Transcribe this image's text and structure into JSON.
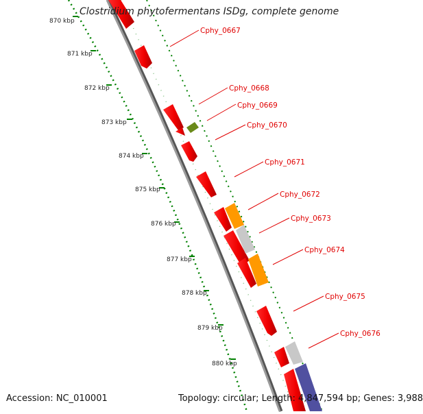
{
  "title": "Clostridium phytofermentans ISDg, complete genome",
  "footer": {
    "accession": "Accession: NC_010001",
    "summary": "Topology: circular; Length: 4,847,594 bp; Genes: 3,988"
  },
  "scale_labels": [
    "870 kbp",
    "871 kbp",
    "872 kbp",
    "873 kbp",
    "874 kbp",
    "875 kbp",
    "876 kbp",
    "877 kbp",
    "878 kbp",
    "879 kbp",
    "880 kbp"
  ],
  "gene_labels": [
    "Cphy_0667",
    "Cphy_0668",
    "Cphy_0669",
    "Cphy_0670",
    "Cphy_0671",
    "Cphy_0672",
    "Cphy_0673",
    "Cphy_0674",
    "Cphy_0675",
    "Cphy_0676"
  ],
  "colors": {
    "cds": "#ff0000",
    "orange_feature": "#ff9900",
    "gray_feature": "#c8c8c8",
    "olive_feature": "#6a8a1a",
    "purple_feature": "#5050a0",
    "backbone": "#808080",
    "ruler_dots": "#008000",
    "label": "#e00000"
  }
}
